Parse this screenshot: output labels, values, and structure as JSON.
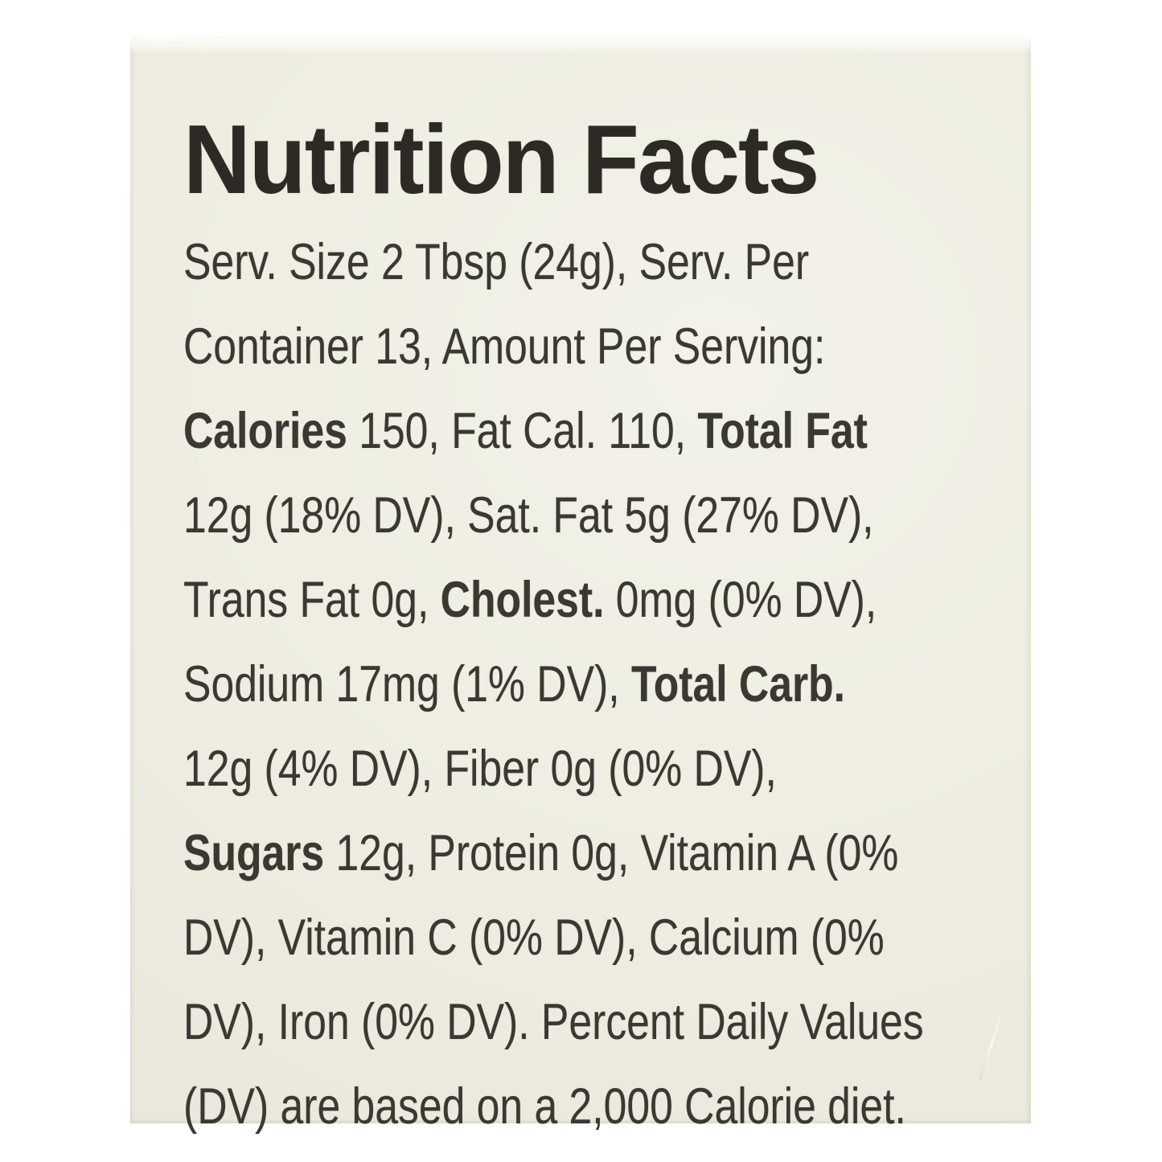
{
  "colors": {
    "page_background": "#ffffff",
    "label_background": "#efede1",
    "body_text": "#3b3833",
    "title_text": "#2d2a26"
  },
  "label": {
    "title": "Nutrition Facts",
    "lines": [
      [
        {
          "t": "Serv. Size 2 Tbsp (24g), Serv. Per",
          "b": false
        }
      ],
      [
        {
          "t": "Container 13, Amount Per Serving:",
          "b": false
        }
      ],
      [
        {
          "t": "Calories",
          "b": true
        },
        {
          "t": " 150, Fat Cal. 110, ",
          "b": false
        },
        {
          "t": "Total Fat",
          "b": true
        }
      ],
      [
        {
          "t": "12g (18% DV), Sat. Fat 5g (27% DV),",
          "b": false
        }
      ],
      [
        {
          "t": "Trans Fat 0g, ",
          "b": false
        },
        {
          "t": "Cholest.",
          "b": true
        },
        {
          "t": " 0mg (0% DV),",
          "b": false
        }
      ],
      [
        {
          "t": "Sodium 17mg (1% DV), ",
          "b": false
        },
        {
          "t": "Total Carb.",
          "b": true
        }
      ],
      [
        {
          "t": "12g (4% DV), Fiber 0g (0% DV),",
          "b": false
        }
      ],
      [
        {
          "t": "Sugars",
          "b": true
        },
        {
          "t": " 12g, Protein 0g, Vitamin A (0%",
          "b": false
        }
      ],
      [
        {
          "t": "DV), Vitamin C (0% DV), Calcium (0%",
          "b": false
        }
      ],
      [
        {
          "t": "DV), Iron (0% DV). Percent Daily Values",
          "b": false
        }
      ],
      [
        {
          "t": "(DV) are based on a 2,000 Calorie diet.",
          "b": false
        }
      ]
    ],
    "nutrition_values": {
      "serving_size": "2 Tbsp (24g)",
      "servings_per_container": "13",
      "calories": "150",
      "fat_calories": "110",
      "total_fat": "12g (18% DV)",
      "saturated_fat": "5g (27% DV)",
      "trans_fat": "0g",
      "cholesterol": "0mg (0% DV)",
      "sodium": "17mg (1% DV)",
      "total_carbohydrate": "12g (4% DV)",
      "fiber": "0g (0% DV)",
      "sugars": "12g",
      "protein": "0g",
      "vitamin_a": "0% DV",
      "vitamin_c": "0% DV",
      "calcium": "0% DV",
      "iron": "0% DV",
      "footnote": "Percent Daily Values (DV) are based on a 2,000 Calorie diet."
    }
  }
}
